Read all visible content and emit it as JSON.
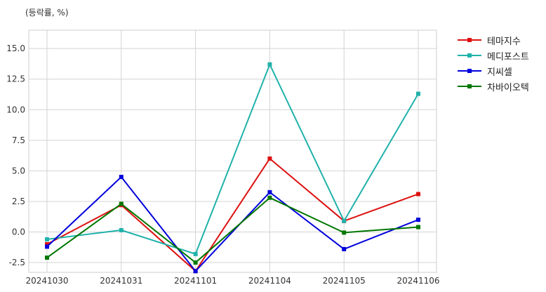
{
  "chart_data": {
    "type": "line",
    "unit_label": "(등락률, %)",
    "categories": [
      "20241030",
      "20241031",
      "20241101",
      "20241104",
      "20241105",
      "20241106"
    ],
    "ylim": [
      -3.3,
      16.5
    ],
    "yticks": [
      "-2.5",
      "0.0",
      "2.5",
      "5.0",
      "7.5",
      "10.0",
      "12.5",
      "15.0"
    ],
    "grid": true,
    "legend_position": "outside-top-right",
    "series": [
      {
        "name": "테마지수",
        "color": "#dd1111",
        "values": [
          -1.0,
          2.2,
          -3.2,
          6.0,
          0.9,
          3.1
        ]
      },
      {
        "name": "메디포스트",
        "color": "#20b2aa",
        "values": [
          -0.6,
          0.15,
          -1.8,
          13.7,
          0.9,
          11.3
        ]
      },
      {
        "name": "지씨셀",
        "color": "#0000dd",
        "values": [
          -1.2,
          4.5,
          -3.2,
          3.25,
          -1.4,
          1.0
        ]
      },
      {
        "name": "차바이오텍",
        "color": "#007700",
        "values": [
          -2.1,
          2.3,
          -2.5,
          2.8,
          -0.05,
          0.4
        ]
      }
    ]
  }
}
